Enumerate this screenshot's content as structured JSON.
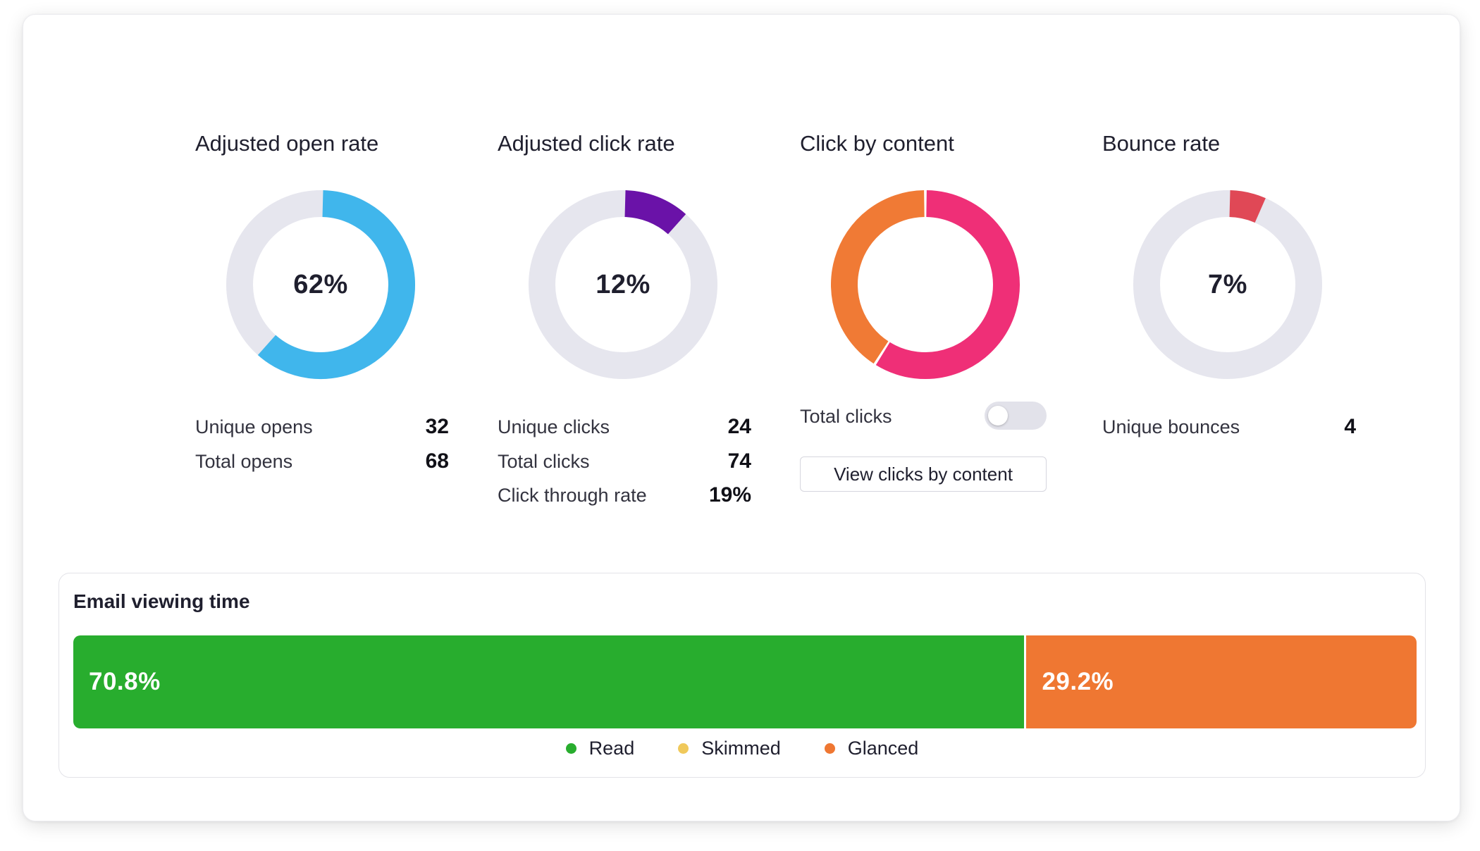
{
  "colors": {
    "track": "#e6e6ee",
    "open": "#40b6ec",
    "click": "#6a12a8",
    "content_orange": "#f07a35",
    "content_pink": "#ef2f77",
    "bounce": "#e04856",
    "read": "#28ad2e",
    "skimmed": "#f0c95b",
    "glanced": "#ef7732"
  },
  "open_rate": {
    "title": "Adjusted open rate",
    "percent_label": "62%",
    "percent": 62,
    "stats": [
      {
        "label": "Unique opens",
        "value": "32"
      },
      {
        "label": "Total opens",
        "value": "68"
      }
    ]
  },
  "click_rate": {
    "title": "Adjusted click rate",
    "percent_label": "12%",
    "percent": 12,
    "stats": [
      {
        "label": "Unique clicks",
        "value": "24"
      },
      {
        "label": "Total clicks",
        "value": "74"
      },
      {
        "label": "Click through rate",
        "value": "19%"
      }
    ]
  },
  "click_by_content": {
    "title": "Click by content",
    "segments": [
      {
        "percent": 59,
        "color_key": "content_pink"
      },
      {
        "percent": 41,
        "color_key": "content_orange"
      }
    ],
    "toggle_label": "Total clicks",
    "toggle_on": false,
    "button_label": "View clicks by content"
  },
  "bounce_rate": {
    "title": "Bounce rate",
    "percent_label": "7%",
    "percent": 7,
    "stats": [
      {
        "label": "Unique bounces",
        "value": "4"
      }
    ]
  },
  "email_viewing_time": {
    "title": "Email viewing time",
    "segments": [
      {
        "label": "70.8%",
        "fraction": 0.708,
        "color_key": "read"
      },
      {
        "label": "29.2%",
        "fraction": 0.292,
        "color_key": "glanced"
      }
    ],
    "legend": [
      {
        "label": "Read",
        "color_key": "read"
      },
      {
        "label": "Skimmed",
        "color_key": "skimmed"
      },
      {
        "label": "Glanced",
        "color_key": "glanced"
      }
    ]
  }
}
